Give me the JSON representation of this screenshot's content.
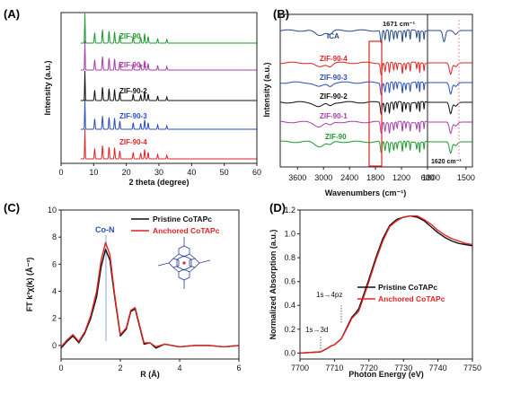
{
  "chart_data": [
    {
      "panel": "(A)",
      "type": "line",
      "xlabel": "2 theta (degree)",
      "ylabel": "Intensity (a.u.)",
      "xlim": [
        0,
        60
      ],
      "xticks": [
        "0",
        "10",
        "20",
        "30",
        "40",
        "50",
        "60"
      ],
      "series": [
        {
          "name": "ZIF-90",
          "color": "#1a9a2e"
        },
        {
          "name": "ZIF-90-1",
          "color": "#a83ea9"
        },
        {
          "name": "ZIF-90-2",
          "color": "#111111"
        },
        {
          "name": "ZIF-90-3",
          "color": "#2a4ec0"
        },
        {
          "name": "ZIF-90-4",
          "color": "#e02424"
        }
      ],
      "peaks": [
        7.3,
        10.3,
        12.7,
        14.7,
        16.4,
        18.0,
        22.1,
        24.4,
        25.6,
        26.7,
        29.6,
        32.4
      ]
    },
    {
      "panel": "(B)",
      "type": "line",
      "xlabel": "Wavenumbers (cm⁻¹)",
      "ylabel": "Intensity (a.u.)",
      "xticks": [
        "3600",
        "3000",
        "2400",
        "1800",
        "1200",
        "600",
        "1800",
        "1500"
      ],
      "annotations": [
        "1671 cm⁻¹",
        "1620 cm⁻¹"
      ],
      "series": [
        {
          "name": "ICA",
          "color": "#2a4a8a"
        },
        {
          "name": "ZIF-90-4",
          "color": "#e02424"
        },
        {
          "name": "ZIF-90-3",
          "color": "#2a4ec0"
        },
        {
          "name": "ZIF-90-2",
          "color": "#111111"
        },
        {
          "name": "ZIF-90-1",
          "color": "#a83ea9"
        },
        {
          "name": "ZIF-90",
          "color": "#1a9a2e"
        }
      ]
    },
    {
      "panel": "(C)",
      "type": "line",
      "xlabel": "R (Å)",
      "ylabel": "FT k³χ(k) (Å⁻³)",
      "xlim": [
        0,
        6
      ],
      "ylim": [
        -1,
        10
      ],
      "xticks": [
        "0",
        "2",
        "4",
        "6"
      ],
      "yticks": [
        "0",
        "2",
        "4",
        "6",
        "8",
        "10"
      ],
      "annotation": "Co-N",
      "series": [
        {
          "name": "Pristine CoTAPc",
          "color": "#111111",
          "x": [
            0.0,
            0.2,
            0.4,
            0.6,
            0.8,
            1.0,
            1.2,
            1.35,
            1.5,
            1.65,
            1.8,
            2.0,
            2.2,
            2.35,
            2.5,
            2.65,
            2.8,
            3.0,
            3.2,
            3.5,
            4.0,
            4.5,
            5.0,
            5.5,
            6.0
          ],
          "y": [
            -0.2,
            0.3,
            0.7,
            0.2,
            0.9,
            2.0,
            3.6,
            5.8,
            7.1,
            6.3,
            3.7,
            0.7,
            1.2,
            2.5,
            2.7,
            1.4,
            0.1,
            0.2,
            -0.2,
            0.1,
            -0.1,
            0.0,
            0.0,
            -0.1,
            0.0
          ]
        },
        {
          "name": "Anchored CoTAPc",
          "color": "#e02424",
          "x": [
            0.0,
            0.2,
            0.4,
            0.6,
            0.8,
            1.0,
            1.2,
            1.35,
            1.5,
            1.65,
            1.8,
            2.0,
            2.2,
            2.35,
            2.5,
            2.65,
            2.8,
            3.0,
            3.2,
            3.5,
            4.0,
            4.5,
            5.0,
            5.5,
            6.0
          ],
          "y": [
            -0.1,
            0.4,
            0.8,
            0.3,
            1.0,
            2.2,
            4.0,
            6.3,
            7.6,
            6.7,
            3.9,
            0.8,
            1.3,
            2.6,
            2.8,
            1.5,
            0.2,
            0.2,
            -0.1,
            0.1,
            -0.1,
            0.0,
            0.0,
            -0.1,
            0.0
          ]
        }
      ]
    },
    {
      "panel": "(D)",
      "type": "line",
      "xlabel": "Photon Energy (eV)",
      "ylabel": "Normalized Absorption (a.u.)",
      "xlim": [
        7700,
        7750
      ],
      "ylim": [
        -0.05,
        1.2
      ],
      "xticks": [
        "7700",
        "7710",
        "7720",
        "7730",
        "7740",
        "7750"
      ],
      "yticks": [
        "0.0",
        "0.2",
        "0.4",
        "0.6",
        "0.8",
        "1.0",
        "1.2"
      ],
      "annotations": [
        "1s→3d",
        "1s→4pz"
      ],
      "series": [
        {
          "name": "Pristine CoTAPc",
          "color": "#111111",
          "x": [
            7700,
            7706,
            7708,
            7709,
            7710,
            7712,
            7714,
            7715,
            7716,
            7717,
            7718,
            7720,
            7722,
            7724,
            7726,
            7728,
            7730,
            7732,
            7734,
            7736,
            7738,
            7740,
            7742,
            7744,
            7746,
            7748,
            7750
          ],
          "y": [
            0.0,
            0.01,
            0.04,
            0.06,
            0.07,
            0.12,
            0.24,
            0.3,
            0.33,
            0.37,
            0.45,
            0.62,
            0.8,
            0.96,
            1.07,
            1.12,
            1.14,
            1.15,
            1.14,
            1.11,
            1.06,
            1.01,
            0.97,
            0.94,
            0.92,
            0.91,
            0.9
          ]
        },
        {
          "name": "Anchored CoTAPc",
          "color": "#e02424",
          "x": [
            7700,
            7706,
            7708,
            7709,
            7710,
            7712,
            7714,
            7715,
            7716,
            7717,
            7718,
            7720,
            7722,
            7724,
            7726,
            7728,
            7730,
            7732,
            7734,
            7736,
            7738,
            7740,
            7742,
            7744,
            7746,
            7748,
            7750
          ],
          "y": [
            0.0,
            0.01,
            0.04,
            0.06,
            0.07,
            0.12,
            0.23,
            0.29,
            0.32,
            0.35,
            0.43,
            0.6,
            0.78,
            0.94,
            1.06,
            1.11,
            1.14,
            1.15,
            1.15,
            1.12,
            1.08,
            1.03,
            0.99,
            0.96,
            0.94,
            0.92,
            0.91
          ]
        }
      ]
    }
  ]
}
